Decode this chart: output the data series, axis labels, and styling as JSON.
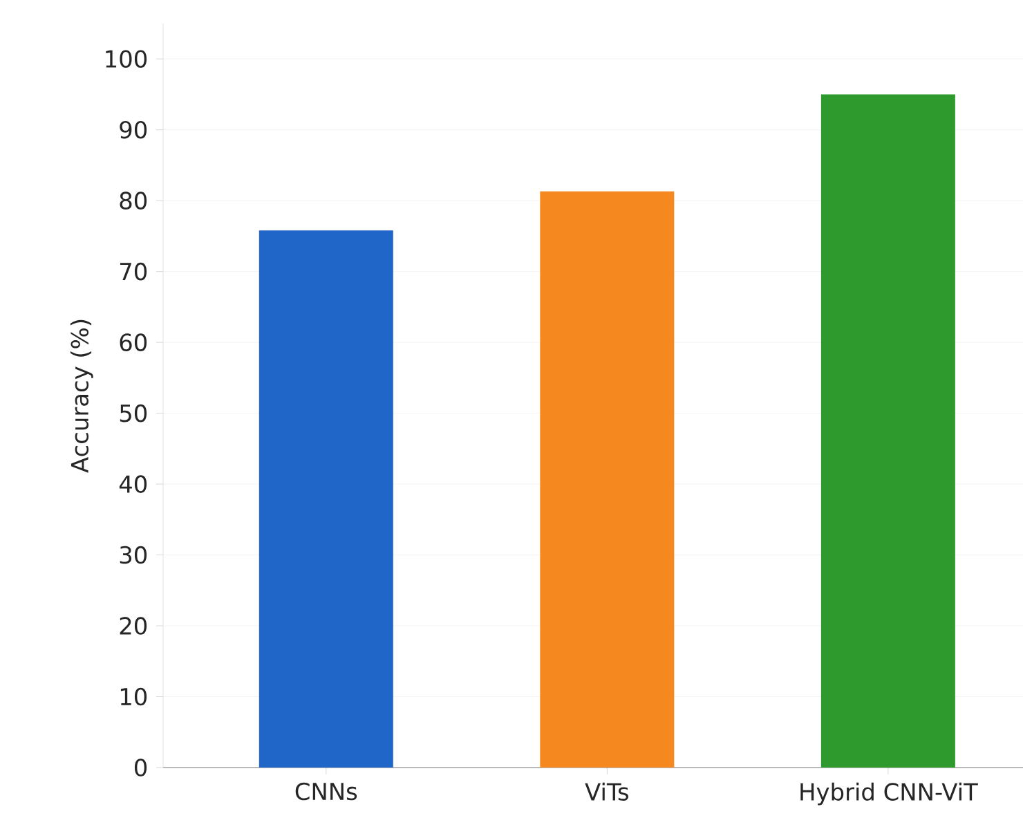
{
  "chart_data": {
    "type": "bar",
    "ylabel": "Accuracy (%)",
    "categories": [
      "CNNs",
      "ViTs",
      "Hybrid CNN-ViT"
    ],
    "values": [
      75.8,
      81.3,
      95.0
    ],
    "colors": [
      "#1f66c8",
      "#f5891f",
      "#2e9a2e"
    ],
    "ylim": [
      0,
      105
    ],
    "yticks": [
      0,
      10,
      20,
      30,
      40,
      50,
      60,
      70,
      80,
      90,
      100
    ],
    "grid": "y"
  }
}
